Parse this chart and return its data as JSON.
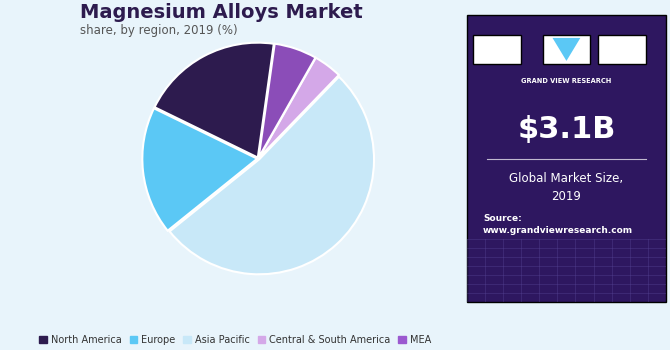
{
  "title": "Magnesium Alloys Market",
  "subtitle": "share, by region, 2019 (%)",
  "labels": [
    "North America",
    "Europe",
    "Asia Pacific",
    "Central & South America",
    "MEA"
  ],
  "values": [
    20,
    18,
    52,
    4,
    6
  ],
  "colors": [
    "#2d1b4e",
    "#5bc8f5",
    "#c8e8f8",
    "#d4a8e8",
    "#8b4db8"
  ],
  "legend_colors": [
    "#2d1b4e",
    "#5bc8f5",
    "#c8e8f8",
    "#d4a8e8",
    "#9b59d0"
  ],
  "bg_color": "#e8f4fb",
  "sidebar_color": "#2e1760",
  "market_size": "$3.1B",
  "market_label": "Global Market Size,\n2019",
  "source_text": "Source:\nwww.grandviewresearch.com"
}
